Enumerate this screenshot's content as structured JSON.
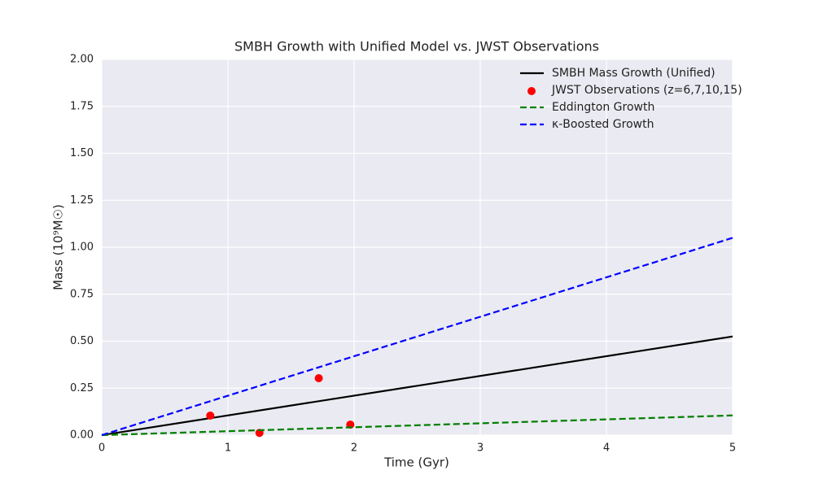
{
  "chart_data": {
    "type": "line",
    "title": "SMBH Growth with Unified Model vs. JWST Observations",
    "x_label": "Time (Gyr)",
    "y_label": "Mass (10⁹M☉)",
    "xlim": [
      0,
      5
    ],
    "ylim": [
      0,
      2
    ],
    "xticks": [
      0,
      1,
      2,
      3,
      4,
      5
    ],
    "yticks": [
      {
        "value": 0,
        "label": "0.00"
      },
      0.25,
      {
        "value": 0.5,
        "label": "0.50"
      },
      0.75,
      {
        "value": 1,
        "label": "1.00"
      },
      1.25,
      {
        "value": 1.5,
        "label": "1.50"
      },
      1.75,
      {
        "value": 2,
        "label": "2.00"
      }
    ],
    "grid": true,
    "legend": "upper right",
    "series": [
      {
        "name": "SMBH Mass Growth (Unified)",
        "kind": "line",
        "style": "solid",
        "color": "#000000",
        "x": [
          0,
          5
        ],
        "values": [
          0,
          0.525
        ]
      },
      {
        "name": "JWST Observations (z=6,7,10,15)",
        "kind": "scatter",
        "color": "#ff0000",
        "x": [
          0.86,
          1.25,
          1.72,
          1.97
        ],
        "values": [
          0.104,
          0.012,
          0.303,
          0.056
        ]
      },
      {
        "name": "Eddington Growth",
        "kind": "line",
        "style": "dashed",
        "color": "#008000",
        "x": [
          0,
          5
        ],
        "values": [
          0,
          0.105
        ]
      },
      {
        "name": "κ-Boosted Growth",
        "kind": "line",
        "style": "dashed",
        "color": "#0000ff",
        "x": [
          0,
          5
        ],
        "values": [
          0,
          1.05
        ]
      }
    ]
  }
}
